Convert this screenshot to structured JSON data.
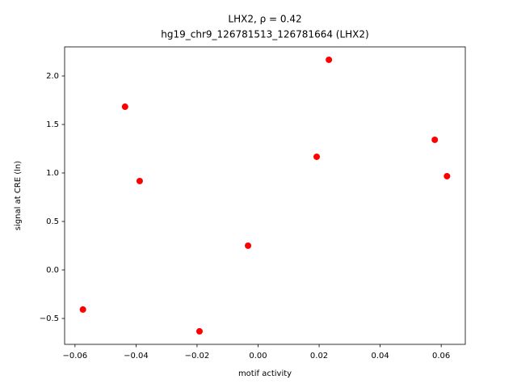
{
  "chart_data": {
    "type": "scatter",
    "title": "LHX2, ρ = 0.42",
    "subtitle": "hg19_chr9_126781513_126781664 (LHX2)",
    "x_label": "motif activity",
    "y_label": "signal at CRE (ln)",
    "color": "#ff0000",
    "x": [
      -0.0574,
      -0.0436,
      -0.0388,
      -0.0192,
      -0.0033,
      0.0192,
      0.0232,
      0.0579,
      0.0619
    ],
    "values": [
      -0.408,
      1.683,
      0.917,
      -0.633,
      0.25,
      1.167,
      2.167,
      1.342,
      0.967
    ],
    "xlim": [
      -0.0634,
      0.0679
    ],
    "ylim": [
      -0.767,
      2.3
    ],
    "xticks": [
      {
        "value": -0.06,
        "label": "−0.06"
      },
      {
        "value": -0.04,
        "label": "−0.04"
      },
      {
        "value": -0.02,
        "label": "−0.02"
      },
      {
        "value": 0,
        "label": "0.00"
      },
      0.02,
      0.04,
      0.06
    ],
    "yticks": [
      {
        "value": -0.5,
        "label": "−0.5"
      },
      {
        "value": 0,
        "label": "0.0"
      },
      0.5,
      {
        "value": 1,
        "label": "1.0"
      },
      1.5,
      {
        "value": 2,
        "label": "2.0"
      }
    ],
    "grid": false
  }
}
